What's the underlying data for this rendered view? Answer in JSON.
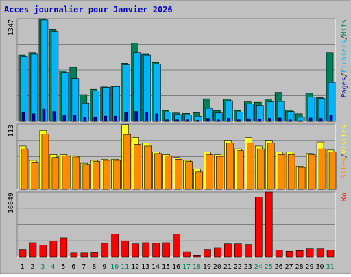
{
  "title": "Acces journalier pour Janvier 2026",
  "colors": {
    "background": "#ffffff",
    "frame": "#c0c0c0",
    "plot_bg": "#c0c0c0",
    "grid": "#808080",
    "title": "#0000cc",
    "hits": "#00805a",
    "files": "#00b4ff",
    "pages": "#0000b0",
    "visits": "#ffff20",
    "sites": "#ff8c00",
    "kbytes": "#ff0000",
    "weekend_label": "#00805a",
    "weekday_label": "#000000"
  },
  "chart_data": [
    {
      "type": "bar",
      "title": "Acces journalier pour Janvier 2026",
      "ymax_label": "1347",
      "ylim": [
        0,
        1347
      ],
      "legend": [
        "Pages",
        "Fichiers",
        "Hits"
      ],
      "legend_separator": "/",
      "legend_placement": "right",
      "grid": true,
      "categories": [
        "1",
        "2",
        "3",
        "4",
        "5",
        "6",
        "7",
        "8",
        "9",
        "10",
        "11",
        "12",
        "13",
        "14",
        "15",
        "16",
        "17",
        "18",
        "19",
        "20",
        "21",
        "22",
        "23",
        "24",
        "25",
        "26",
        "27",
        "28",
        "29",
        "30",
        "31"
      ],
      "series": [
        {
          "name": "Hits",
          "values": [
            870,
            900,
            1347,
            1200,
            660,
            710,
            350,
            420,
            450,
            460,
            760,
            1030,
            880,
            770,
            140,
            110,
            105,
            115,
            295,
            140,
            290,
            140,
            255,
            250,
            290,
            380,
            150,
            100,
            370,
            310,
            900
          ]
        },
        {
          "name": "Fichiers",
          "values": [
            850,
            880,
            1330,
            1180,
            640,
            560,
            240,
            400,
            445,
            455,
            740,
            900,
            870,
            750,
            120,
            90,
            85,
            70,
            170,
            110,
            270,
            120,
            230,
            210,
            255,
            260,
            130,
            55,
            320,
            300,
            510
          ]
        },
        {
          "name": "Pages",
          "values": [
            120,
            100,
            160,
            130,
            80,
            85,
            50,
            60,
            70,
            70,
            120,
            130,
            120,
            100,
            20,
            20,
            20,
            15,
            40,
            20,
            40,
            20,
            35,
            30,
            40,
            45,
            20,
            10,
            45,
            40,
            80
          ]
        }
      ]
    },
    {
      "type": "bar",
      "ymax_label": "113",
      "ylim": [
        0,
        113
      ],
      "legend": [
        "Sites",
        "Visites"
      ],
      "legend_separator": "/",
      "legend_placement": "right",
      "grid": true,
      "categories": [
        "1",
        "2",
        "3",
        "4",
        "5",
        "6",
        "7",
        "8",
        "9",
        "10",
        "11",
        "12",
        "13",
        "14",
        "15",
        "16",
        "17",
        "18",
        "19",
        "20",
        "21",
        "22",
        "23",
        "24",
        "25",
        "26",
        "27",
        "28",
        "29",
        "30",
        "31"
      ],
      "series": [
        {
          "name": "Visites",
          "values": [
            75,
            50,
            102,
            60,
            60,
            58,
            45,
            50,
            52,
            52,
            112,
            90,
            80,
            65,
            60,
            55,
            50,
            35,
            65,
            60,
            85,
            70,
            90,
            75,
            85,
            65,
            65,
            40,
            62,
            82,
            68
          ]
        },
        {
          "name": "Sites",
          "values": [
            70,
            46,
            96,
            55,
            58,
            56,
            43,
            48,
            50,
            50,
            95,
            78,
            75,
            62,
            58,
            52,
            48,
            30,
            60,
            57,
            80,
            67,
            80,
            70,
            80,
            60,
            60,
            38,
            60,
            70,
            65
          ]
        }
      ]
    },
    {
      "type": "bar",
      "ymax_label": "10849",
      "ylim": [
        0,
        10849
      ],
      "legend": [
        "Ko"
      ],
      "legend_placement": "right",
      "grid": true,
      "categories": [
        "1",
        "2",
        "3",
        "4",
        "5",
        "6",
        "7",
        "8",
        "9",
        "10",
        "11",
        "12",
        "13",
        "14",
        "15",
        "16",
        "17",
        "18",
        "19",
        "20",
        "21",
        "22",
        "23",
        "24",
        "25",
        "26",
        "27",
        "28",
        "29",
        "30",
        "31"
      ],
      "series": [
        {
          "name": "Ko",
          "values": [
            1300,
            2400,
            2000,
            2700,
            3200,
            700,
            700,
            750,
            2300,
            3800,
            2700,
            2200,
            2400,
            2300,
            2400,
            3800,
            900,
            300,
            1300,
            1600,
            2200,
            2200,
            2100,
            10000,
            10849,
            1200,
            1000,
            1100,
            1400,
            1400,
            1200
          ]
        }
      ]
    }
  ],
  "x_labels": [
    "1",
    "2",
    "3",
    "4",
    "5",
    "6",
    "7",
    "8",
    "9",
    "10",
    "11",
    "12",
    "13",
    "14",
    "15",
    "16",
    "17",
    "18",
    "19",
    "20",
    "21",
    "22",
    "23",
    "24",
    "25",
    "26",
    "27",
    "28",
    "29",
    "30",
    "31"
  ],
  "weekend_days": [
    "3",
    "4",
    "10",
    "11",
    "17",
    "18",
    "24",
    "25",
    "31"
  ]
}
